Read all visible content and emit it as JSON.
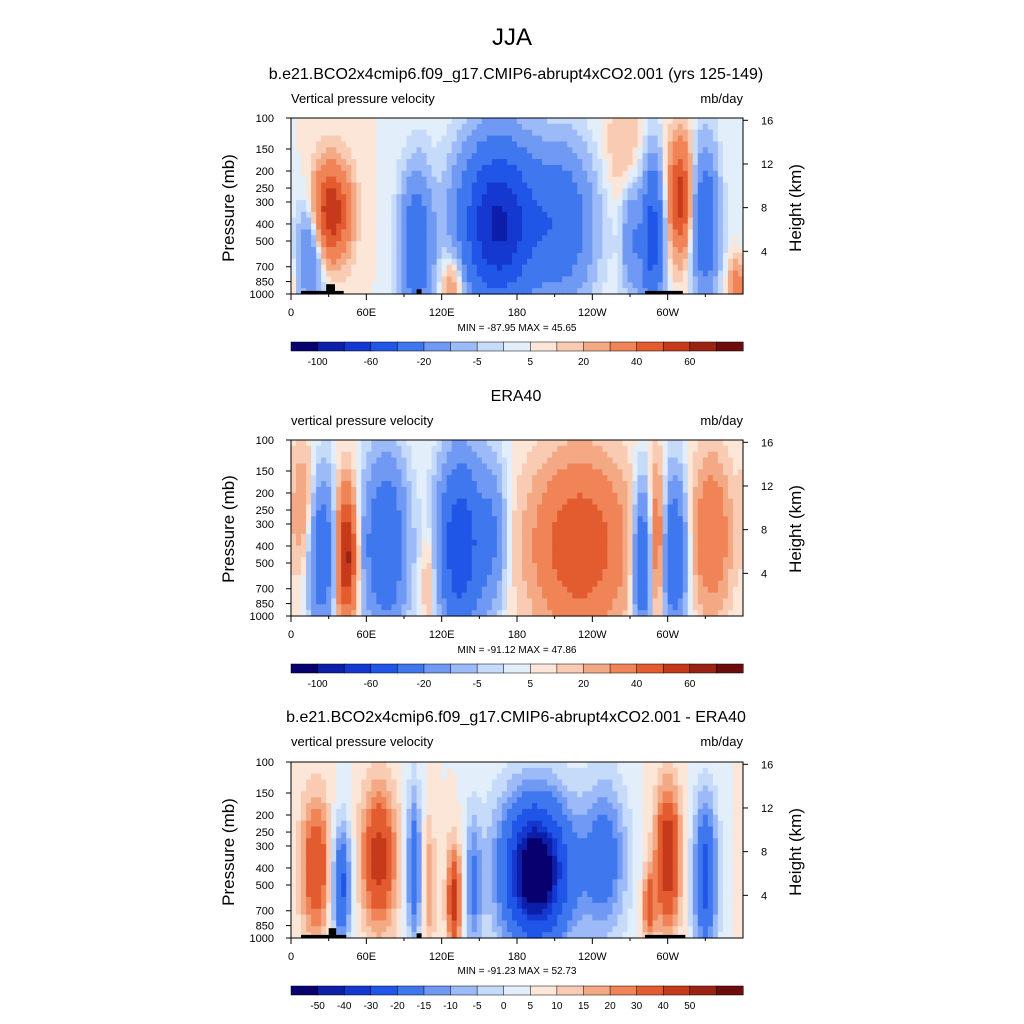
{
  "figure_title": "JJA",
  "panels": [
    {
      "title": "b.e21.BCO2x4cmip6.f09_g17.CMIP6-abrupt4xCO2.001 (yrs 125-149)",
      "left_label": "Vertical pressure velocity",
      "right_label": "mb/day",
      "stats": "MIN = -87.95  MAX =  45.65"
    },
    {
      "title": "ERA40",
      "left_label": "vertical pressure velocity",
      "right_label": "mb/day",
      "stats": "MIN = -91.12  MAX =  47.86"
    },
    {
      "title": "b.e21.BCO2x4cmip6.f09_g17.CMIP6-abrupt4xCO2.001 - ERA40",
      "left_label": "vertical pressure velocity",
      "right_label": "mb/day",
      "stats": "MIN = -91.23  MAX =  52.73"
    }
  ],
  "colors": {
    "levels16": [
      "#08006e",
      "#0d1fa8",
      "#1438d0",
      "#2056e8",
      "#3f77ee",
      "#6f99f3",
      "#9cbaf7",
      "#c6daf9",
      "#e3eefb",
      "#fbe6d8",
      "#f8cbb2",
      "#f4a985",
      "#f08457",
      "#e25c30",
      "#c63a1b",
      "#9a2314",
      "#6e0b0b"
    ],
    "levels20": [
      "#08006e",
      "#0d1fa8",
      "#1438d0",
      "#2056e8",
      "#3f77ee",
      "#6f99f3",
      "#9cbaf7",
      "#c6daf9",
      "#e3eefb",
      "#fbe6d8",
      "#f8cbb2",
      "#f4a985",
      "#f08457",
      "#e25c30",
      "#c63a1b",
      "#9a2314",
      "#6e0b0b"
    ],
    "topography": "#000000"
  },
  "chart_data": [
    {
      "type": "heatmap",
      "title": "b.e21.BCO2x4cmip6.f09_g17.CMIP6-abrupt4xCO2.001 (yrs 125-149)",
      "xlabel": "",
      "ylabel": "Pressure (mb)",
      "ylabel_right": "Height (km)",
      "x_ticks": [
        "0",
        "60E",
        "120E",
        "180",
        "120W",
        "60W"
      ],
      "y_ticks": [
        "100",
        "150",
        "200",
        "250",
        "300",
        "400",
        "500",
        "700",
        "850",
        "1000"
      ],
      "y_right_ticks": [
        "16",
        "12",
        "8",
        "4"
      ],
      "colorbar_labels": [
        "-100",
        "-60",
        "-20",
        "-5",
        "5",
        "20",
        "40",
        "60"
      ],
      "min": -87.95,
      "max": 45.65,
      "field": "vertical pressure velocity (mb/day)",
      "blobs": [
        {
          "lon": 32,
          "p": 340,
          "value": 40,
          "wlon": 14,
          "wlogp": 0.25
        },
        {
          "lon": 15,
          "p": 600,
          "value": -20,
          "wlon": 10,
          "wlogp": 0.3
        },
        {
          "lon": 100,
          "p": 550,
          "value": -35,
          "wlon": 12,
          "wlogp": 0.4
        },
        {
          "lon": 130,
          "p": 850,
          "value": 15,
          "wlon": 10,
          "wlogp": 0.2
        },
        {
          "lon": 165,
          "p": 400,
          "value": -85,
          "wlon": 28,
          "wlogp": 0.42
        },
        {
          "lon": 215,
          "p": 400,
          "value": -35,
          "wlon": 24,
          "wlogp": 0.4
        },
        {
          "lon": 265,
          "p": 150,
          "value": 5,
          "wlon": 15,
          "wlogp": 0.3
        },
        {
          "lon": 272,
          "p": 500,
          "value": -20,
          "wlon": 8,
          "wlogp": 0.3
        },
        {
          "lon": 288,
          "p": 480,
          "value": -50,
          "wlon": 8,
          "wlogp": 0.4
        },
        {
          "lon": 310,
          "p": 280,
          "value": 35,
          "wlon": 9,
          "wlogp": 0.3
        },
        {
          "lon": 330,
          "p": 400,
          "value": -35,
          "wlon": 10,
          "wlogp": 0.4
        },
        {
          "lon": 355,
          "p": 900,
          "value": 15,
          "wlon": 6,
          "wlogp": 0.15
        }
      ],
      "topography": [
        {
          "lon_start": 8,
          "lon_end": 42,
          "p_top": 960
        },
        {
          "lon_start": 28,
          "lon_end": 35,
          "p_top": 880
        },
        {
          "lon_start": 100,
          "lon_end": 104,
          "p_top": 940
        },
        {
          "lon_start": 282,
          "lon_end": 312,
          "p_top": 960
        }
      ]
    },
    {
      "type": "heatmap",
      "title": "ERA40",
      "xlabel": "",
      "ylabel": "Pressure (mb)",
      "ylabel_right": "Height (km)",
      "x_ticks": [
        "0",
        "60E",
        "120E",
        "180",
        "120W",
        "60W"
      ],
      "y_ticks": [
        "100",
        "150",
        "200",
        "250",
        "300",
        "400",
        "500",
        "700",
        "850",
        "1000"
      ],
      "y_right_ticks": [
        "16",
        "12",
        "8",
        "4"
      ],
      "colorbar_labels": [
        "-100",
        "-60",
        "-20",
        "-5",
        "5",
        "20",
        "40",
        "60"
      ],
      "min": -91.12,
      "max": 47.86,
      "field": "vertical pressure velocity (mb/day)",
      "blobs": [
        {
          "lon": 10,
          "p": 250,
          "value": 10,
          "wlon": 10,
          "wlogp": 0.35
        },
        {
          "lon": 25,
          "p": 450,
          "value": -35,
          "wlon": 10,
          "wlogp": 0.4
        },
        {
          "lon": 44,
          "p": 450,
          "value": 45,
          "wlon": 8,
          "wlogp": 0.35
        },
        {
          "lon": 75,
          "p": 400,
          "value": -40,
          "wlon": 16,
          "wlogp": 0.45
        },
        {
          "lon": 110,
          "p": 600,
          "value": 8,
          "wlon": 6,
          "wlogp": 0.3
        },
        {
          "lon": 135,
          "p": 400,
          "value": -60,
          "wlon": 16,
          "wlogp": 0.45
        },
        {
          "lon": 160,
          "p": 350,
          "value": -20,
          "wlon": 10,
          "wlogp": 0.4
        },
        {
          "lon": 230,
          "p": 400,
          "value": 30,
          "wlon": 35,
          "wlogp": 0.45
        },
        {
          "lon": 280,
          "p": 500,
          "value": -40,
          "wlon": 7,
          "wlogp": 0.4
        },
        {
          "lon": 292,
          "p": 380,
          "value": 20,
          "wlon": 7,
          "wlogp": 0.4
        },
        {
          "lon": 305,
          "p": 450,
          "value": -40,
          "wlon": 9,
          "wlogp": 0.4
        },
        {
          "lon": 335,
          "p": 350,
          "value": 20,
          "wlon": 14,
          "wlogp": 0.4
        }
      ],
      "topography": []
    },
    {
      "type": "heatmap",
      "title": "b.e21.BCO2x4cmip6.f09_g17.CMIP6-abrupt4xCO2.001 - ERA40",
      "xlabel": "",
      "ylabel": "Pressure (mb)",
      "ylabel_right": "Height (km)",
      "x_ticks": [
        "0",
        "60E",
        "120E",
        "180",
        "120W",
        "60W"
      ],
      "y_ticks": [
        "100",
        "150",
        "200",
        "250",
        "300",
        "400",
        "500",
        "700",
        "850",
        "1000"
      ],
      "y_right_ticks": [
        "16",
        "12",
        "8",
        "4"
      ],
      "colorbar_labels": [
        "-50",
        "-40",
        "-30",
        "-20",
        "-15",
        "-10",
        "-5",
        "0",
        "5",
        "10",
        "15",
        "20",
        "30",
        "40",
        "50"
      ],
      "min": -91.23,
      "max": 52.73,
      "field": "vertical pressure velocity difference (mb/day)",
      "blobs": [
        {
          "lon": 20,
          "p": 400,
          "value": 30,
          "wlon": 12,
          "wlogp": 0.4
        },
        {
          "lon": 40,
          "p": 500,
          "value": -35,
          "wlon": 8,
          "wlogp": 0.35
        },
        {
          "lon": 70,
          "p": 350,
          "value": 35,
          "wlon": 14,
          "wlogp": 0.4
        },
        {
          "lon": 98,
          "p": 400,
          "value": -30,
          "wlon": 6,
          "wlogp": 0.45
        },
        {
          "lon": 110,
          "p": 500,
          "value": 15,
          "wlon": 5,
          "wlogp": 0.4
        },
        {
          "lon": 130,
          "p": 600,
          "value": 35,
          "wlon": 6,
          "wlogp": 0.3
        },
        {
          "lon": 145,
          "p": 500,
          "value": -20,
          "wlon": 7,
          "wlogp": 0.4
        },
        {
          "lon": 195,
          "p": 420,
          "value": -60,
          "wlon": 30,
          "wlogp": 0.45
        },
        {
          "lon": 250,
          "p": 350,
          "value": -25,
          "wlon": 18,
          "wlogp": 0.45
        },
        {
          "lon": 300,
          "p": 350,
          "value": 40,
          "wlon": 10,
          "wlogp": 0.4
        },
        {
          "lon": 285,
          "p": 650,
          "value": 25,
          "wlon": 5,
          "wlogp": 0.2
        },
        {
          "lon": 330,
          "p": 450,
          "value": -35,
          "wlon": 10,
          "wlogp": 0.45
        }
      ],
      "topography": [
        {
          "lon_start": 8,
          "lon_end": 44,
          "p_top": 960
        },
        {
          "lon_start": 30,
          "lon_end": 36,
          "p_top": 880
        },
        {
          "lon_start": 100,
          "lon_end": 104,
          "p_top": 940
        },
        {
          "lon_start": 282,
          "lon_end": 314,
          "p_top": 960
        }
      ]
    }
  ]
}
